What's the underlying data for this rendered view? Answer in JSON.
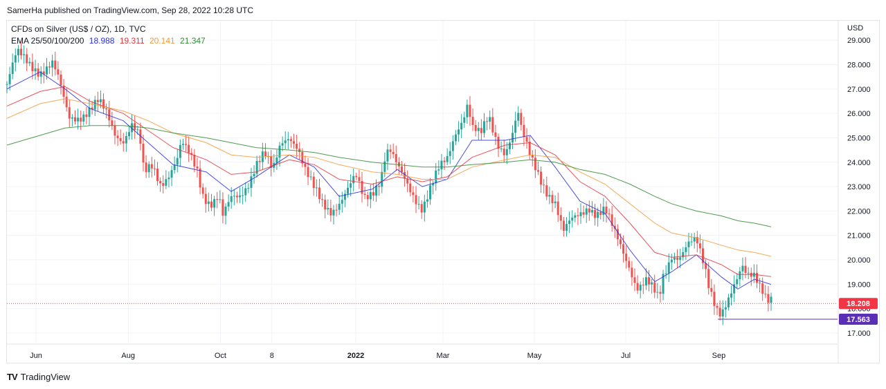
{
  "header": {
    "text": "SamerHa published on TradingView.com, Sep 28, 2022 10:28 UTC"
  },
  "footer": {
    "brand": "TradingView",
    "logo_glyph": "TV"
  },
  "legend": {
    "symbol": "CFDs on Silver (US$ / OZ), 1D, TVC",
    "ema_label": "EMA 25/50/100/200",
    "ema_values": [
      "18.988",
      "19.311",
      "20.141",
      "21.347"
    ],
    "ema_colors": [
      "#2a2ee0",
      "#e8333b",
      "#f39a38",
      "#2e8b2e"
    ]
  },
  "chart_data": {
    "type": "candlestick",
    "title": "CFDs on Silver (US$ / OZ), 1D, TVC",
    "currency": "USD",
    "y_ticks": [
      "29.000",
      "28.000",
      "27.000",
      "26.000",
      "25.000",
      "24.000",
      "23.000",
      "22.000",
      "21.000",
      "20.000",
      "19.000",
      "18.000",
      "17.000"
    ],
    "ylim": [
      16.6,
      29.8
    ],
    "x_labels": [
      {
        "label": "Jun",
        "pos": 0.035,
        "bold": false
      },
      {
        "label": "Aug",
        "pos": 0.146,
        "bold": false
      },
      {
        "label": "Oct",
        "pos": 0.257,
        "bold": false
      },
      {
        "label": "8",
        "pos": 0.319,
        "bold": false
      },
      {
        "label": "2022",
        "pos": 0.42,
        "bold": true
      },
      {
        "label": "Mar",
        "pos": 0.525,
        "bold": false
      },
      {
        "label": "May",
        "pos": 0.635,
        "bold": false
      },
      {
        "label": "Jul",
        "pos": 0.745,
        "bold": false
      },
      {
        "label": "Sep",
        "pos": 0.857,
        "bold": false
      }
    ],
    "price_path": [
      [
        0,
        27.2
      ],
      [
        0.012,
        28.4
      ],
      [
        0.025,
        28.1
      ],
      [
        0.04,
        27.8
      ],
      [
        0.055,
        28.0
      ],
      [
        0.063,
        27.2
      ],
      [
        0.07,
        26.3
      ],
      [
        0.075,
        25.8
      ],
      [
        0.09,
        26.0
      ],
      [
        0.1,
        26.2
      ],
      [
        0.11,
        26.4
      ],
      [
        0.12,
        25.9
      ],
      [
        0.13,
        25.2
      ],
      [
        0.14,
        25.0
      ],
      [
        0.15,
        25.6
      ],
      [
        0.155,
        25.3
      ],
      [
        0.16,
        24.9
      ],
      [
        0.165,
        23.4
      ],
      [
        0.175,
        23.8
      ],
      [
        0.185,
        23.2
      ],
      [
        0.195,
        23.6
      ],
      [
        0.205,
        24.1
      ],
      [
        0.21,
        24.7
      ],
      [
        0.22,
        24.2
      ],
      [
        0.23,
        23.6
      ],
      [
        0.235,
        22.8
      ],
      [
        0.245,
        22.4
      ],
      [
        0.255,
        22.6
      ],
      [
        0.26,
        21.7
      ],
      [
        0.27,
        22.4
      ],
      [
        0.28,
        22.6
      ],
      [
        0.29,
        23.2
      ],
      [
        0.3,
        24.0
      ],
      [
        0.31,
        24.3
      ],
      [
        0.32,
        23.5
      ],
      [
        0.33,
        24.8
      ],
      [
        0.34,
        25.2
      ],
      [
        0.35,
        24.7
      ],
      [
        0.355,
        24.1
      ],
      [
        0.36,
        23.5
      ],
      [
        0.37,
        22.8
      ],
      [
        0.38,
        22.3
      ],
      [
        0.39,
        22.1
      ],
      [
        0.4,
        22.4
      ],
      [
        0.41,
        22.8
      ],
      [
        0.42,
        23.3
      ],
      [
        0.43,
        22.5
      ],
      [
        0.44,
        22.9
      ],
      [
        0.45,
        23.4
      ],
      [
        0.455,
        24.2
      ],
      [
        0.46,
        24.5
      ],
      [
        0.47,
        23.7
      ],
      [
        0.48,
        23.2
      ],
      [
        0.49,
        22.7
      ],
      [
        0.5,
        22.2
      ],
      [
        0.51,
        22.9
      ],
      [
        0.52,
        23.6
      ],
      [
        0.53,
        24.1
      ],
      [
        0.54,
        25.3
      ],
      [
        0.55,
        26.0
      ],
      [
        0.555,
        26.5
      ],
      [
        0.56,
        25.4
      ],
      [
        0.57,
        25.0
      ],
      [
        0.58,
        25.8
      ],
      [
        0.59,
        24.9
      ],
      [
        0.6,
        24.5
      ],
      [
        0.61,
        25.3
      ],
      [
        0.615,
        26.0
      ],
      [
        0.62,
        25.1
      ],
      [
        0.63,
        24.2
      ],
      [
        0.64,
        23.6
      ],
      [
        0.65,
        22.9
      ],
      [
        0.66,
        22.3
      ],
      [
        0.665,
        21.6
      ],
      [
        0.67,
        21.0
      ],
      [
        0.68,
        21.6
      ],
      [
        0.69,
        22.0
      ],
      [
        0.7,
        22.3
      ],
      [
        0.71,
        21.8
      ],
      [
        0.72,
        21.9
      ],
      [
        0.73,
        21.2
      ],
      [
        0.74,
        20.6
      ],
      [
        0.75,
        19.8
      ],
      [
        0.755,
        19.2
      ],
      [
        0.76,
        18.8
      ],
      [
        0.77,
        19.0
      ],
      [
        0.78,
        18.6
      ],
      [
        0.785,
        18.4
      ],
      [
        0.79,
        19.4
      ],
      [
        0.8,
        20.3
      ],
      [
        0.81,
        20.1
      ],
      [
        0.82,
        20.5
      ],
      [
        0.83,
        20.7
      ],
      [
        0.84,
        19.8
      ],
      [
        0.845,
        19.1
      ],
      [
        0.85,
        18.6
      ],
      [
        0.855,
        18.1
      ],
      [
        0.86,
        17.8
      ],
      [
        0.87,
        18.3
      ],
      [
        0.88,
        19.1
      ],
      [
        0.885,
        19.7
      ],
      [
        0.89,
        19.5
      ],
      [
        0.9,
        19.6
      ],
      [
        0.905,
        19.2
      ],
      [
        0.91,
        18.8
      ],
      [
        0.915,
        18.3
      ],
      [
        0.92,
        18.21
      ]
    ],
    "ema_series": [
      {
        "name": "EMA 25",
        "value": "18.988",
        "color": "#2a2ee0",
        "path": [
          [
            0,
            27.0
          ],
          [
            0.04,
            27.7
          ],
          [
            0.07,
            27.0
          ],
          [
            0.1,
            26.2
          ],
          [
            0.14,
            25.7
          ],
          [
            0.17,
            24.8
          ],
          [
            0.2,
            23.9
          ],
          [
            0.24,
            23.6
          ],
          [
            0.27,
            22.8
          ],
          [
            0.3,
            23.4
          ],
          [
            0.34,
            24.3
          ],
          [
            0.37,
            23.8
          ],
          [
            0.4,
            22.6
          ],
          [
            0.44,
            22.9
          ],
          [
            0.47,
            23.7
          ],
          [
            0.5,
            23.0
          ],
          [
            0.53,
            23.3
          ],
          [
            0.56,
            24.9
          ],
          [
            0.6,
            24.9
          ],
          [
            0.63,
            25.1
          ],
          [
            0.66,
            23.8
          ],
          [
            0.69,
            22.4
          ],
          [
            0.72,
            21.9
          ],
          [
            0.75,
            20.4
          ],
          [
            0.78,
            19.1
          ],
          [
            0.8,
            19.5
          ],
          [
            0.83,
            20.2
          ],
          [
            0.86,
            19.3
          ],
          [
            0.88,
            18.8
          ],
          [
            0.9,
            19.2
          ],
          [
            0.92,
            18.99
          ]
        ]
      },
      {
        "name": "EMA 50",
        "value": "19.311",
        "color": "#e8333b",
        "path": [
          [
            0,
            26.3
          ],
          [
            0.04,
            26.9
          ],
          [
            0.07,
            27.1
          ],
          [
            0.1,
            26.5
          ],
          [
            0.14,
            26.0
          ],
          [
            0.17,
            25.3
          ],
          [
            0.2,
            24.6
          ],
          [
            0.24,
            24.1
          ],
          [
            0.27,
            23.5
          ],
          [
            0.3,
            23.6
          ],
          [
            0.34,
            24.1
          ],
          [
            0.37,
            23.9
          ],
          [
            0.4,
            23.3
          ],
          [
            0.44,
            23.1
          ],
          [
            0.47,
            23.4
          ],
          [
            0.5,
            23.2
          ],
          [
            0.53,
            23.4
          ],
          [
            0.56,
            24.2
          ],
          [
            0.6,
            24.7
          ],
          [
            0.63,
            24.8
          ],
          [
            0.66,
            24.3
          ],
          [
            0.69,
            23.2
          ],
          [
            0.72,
            22.6
          ],
          [
            0.75,
            21.5
          ],
          [
            0.78,
            20.3
          ],
          [
            0.8,
            20.1
          ],
          [
            0.83,
            20.2
          ],
          [
            0.86,
            19.8
          ],
          [
            0.88,
            19.4
          ],
          [
            0.9,
            19.4
          ],
          [
            0.92,
            19.31
          ]
        ]
      },
      {
        "name": "EMA 100",
        "value": "20.141",
        "color": "#f39a38",
        "path": [
          [
            0,
            25.8
          ],
          [
            0.04,
            26.4
          ],
          [
            0.07,
            26.6
          ],
          [
            0.1,
            26.4
          ],
          [
            0.14,
            26.1
          ],
          [
            0.17,
            25.7
          ],
          [
            0.2,
            25.2
          ],
          [
            0.24,
            24.8
          ],
          [
            0.27,
            24.3
          ],
          [
            0.3,
            24.2
          ],
          [
            0.34,
            24.3
          ],
          [
            0.37,
            24.2
          ],
          [
            0.4,
            23.9
          ],
          [
            0.44,
            23.6
          ],
          [
            0.47,
            23.5
          ],
          [
            0.5,
            23.3
          ],
          [
            0.53,
            23.3
          ],
          [
            0.56,
            23.8
          ],
          [
            0.6,
            24.1
          ],
          [
            0.63,
            24.3
          ],
          [
            0.66,
            24.2
          ],
          [
            0.69,
            23.6
          ],
          [
            0.72,
            23.1
          ],
          [
            0.75,
            22.3
          ],
          [
            0.78,
            21.5
          ],
          [
            0.8,
            21.1
          ],
          [
            0.83,
            20.9
          ],
          [
            0.86,
            20.6
          ],
          [
            0.88,
            20.4
          ],
          [
            0.9,
            20.3
          ],
          [
            0.92,
            20.14
          ]
        ]
      },
      {
        "name": "EMA 200",
        "value": "21.347",
        "color": "#2e8b2e",
        "path": [
          [
            0,
            24.7
          ],
          [
            0.04,
            25.1
          ],
          [
            0.07,
            25.4
          ],
          [
            0.1,
            25.5
          ],
          [
            0.14,
            25.5
          ],
          [
            0.17,
            25.4
          ],
          [
            0.2,
            25.2
          ],
          [
            0.24,
            25.0
          ],
          [
            0.27,
            24.8
          ],
          [
            0.3,
            24.6
          ],
          [
            0.34,
            24.5
          ],
          [
            0.37,
            24.4
          ],
          [
            0.4,
            24.2
          ],
          [
            0.44,
            24.0
          ],
          [
            0.47,
            23.9
          ],
          [
            0.5,
            23.8
          ],
          [
            0.53,
            23.8
          ],
          [
            0.56,
            23.9
          ],
          [
            0.6,
            24.0
          ],
          [
            0.63,
            24.1
          ],
          [
            0.66,
            24.0
          ],
          [
            0.69,
            23.7
          ],
          [
            0.72,
            23.5
          ],
          [
            0.75,
            23.1
          ],
          [
            0.78,
            22.6
          ],
          [
            0.8,
            22.3
          ],
          [
            0.83,
            22.0
          ],
          [
            0.86,
            21.8
          ],
          [
            0.88,
            21.6
          ],
          [
            0.9,
            21.5
          ],
          [
            0.92,
            21.35
          ]
        ]
      }
    ],
    "last_price": {
      "value": "18.208",
      "color": "#f23645"
    },
    "low_marker": {
      "value": "17.563",
      "color": "#5b2fb5",
      "from": 0.856
    }
  }
}
